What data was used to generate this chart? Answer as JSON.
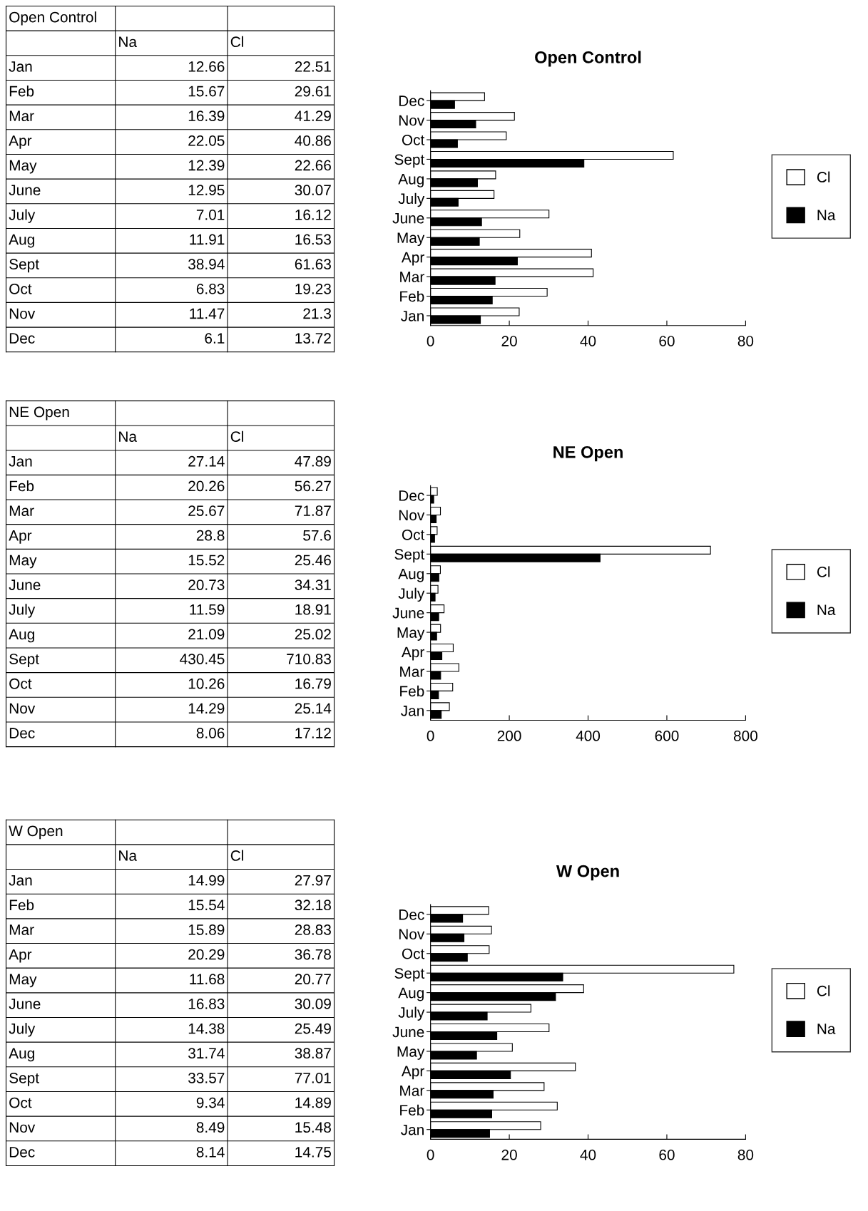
{
  "chart_data": [
    {
      "type": "other",
      "title": "Open Control",
      "annotations": [
        "Na",
        "Cl",
        "Jan",
        "12.66",
        "22.51",
        "Feb",
        "15.67",
        "29.61",
        "Mar",
        "16.39",
        "41.29",
        "Apr",
        "22.05",
        "40.86",
        "May",
        "12.39",
        "22.66",
        "June",
        "12.95",
        "30.07",
        "July",
        "7.01",
        "16.12",
        "Aug",
        "11.91",
        "16.53",
        "Sept",
        "38.94",
        "61.63",
        "Oct",
        "6.83",
        "19.23",
        "Nov",
        "11.47",
        "21.3",
        "Dec",
        "6.1",
        "13.72"
      ]
    },
    {
      "type": "bar",
      "orientation": "horizontal",
      "title": "Open Control",
      "categories": [
        "Dec",
        "Nov",
        "Oct",
        "Sept",
        "Aug",
        "July",
        "June",
        "May",
        "Apr",
        "Mar",
        "Feb",
        "Jan"
      ],
      "series": [
        {
          "name": "Cl",
          "color": "#ffffff",
          "values": [
            13.72,
            21.3,
            19.23,
            61.63,
            16.53,
            16.12,
            30.07,
            22.66,
            40.86,
            41.29,
            29.61,
            22.51
          ]
        },
        {
          "name": "Na",
          "color": "#000000",
          "values": [
            6.1,
            11.47,
            6.83,
            38.94,
            11.91,
            7.01,
            12.95,
            12.39,
            22.05,
            16.39,
            15.67,
            12.66
          ]
        }
      ],
      "xlim": [
        0,
        80
      ],
      "xticks": [
        0,
        20,
        40,
        60,
        80
      ],
      "legend": "right",
      "grid": false
    },
    {
      "type": "other",
      "title": "NE Open",
      "annotations": [
        "Na",
        "Cl",
        "Jan",
        "27.14",
        "47.89",
        "Feb",
        "20.26",
        "56.27",
        "Mar",
        "25.67",
        "71.87",
        "Apr",
        "28.8",
        "57.6",
        "May",
        "15.52",
        "25.46",
        "June",
        "20.73",
        "34.31",
        "July",
        "11.59",
        "18.91",
        "Aug",
        "21.09",
        "25.02",
        "Sept",
        "430.45",
        "710.83",
        "Oct",
        "10.26",
        "16.79",
        "Nov",
        "14.29",
        "25.14",
        "Dec",
        "8.06",
        "17.12"
      ]
    },
    {
      "type": "bar",
      "orientation": "horizontal",
      "title": "NE Open",
      "categories": [
        "Dec",
        "Nov",
        "Oct",
        "Sept",
        "Aug",
        "July",
        "June",
        "May",
        "Apr",
        "Mar",
        "Feb",
        "Jan"
      ],
      "series": [
        {
          "name": "Cl",
          "color": "#ffffff",
          "values": [
            17.12,
            25.14,
            16.79,
            710.83,
            25.02,
            18.91,
            34.31,
            25.46,
            57.6,
            71.87,
            56.27,
            47.89
          ]
        },
        {
          "name": "Na",
          "color": "#000000",
          "values": [
            8.06,
            14.29,
            10.26,
            430.45,
            21.09,
            11.59,
            20.73,
            15.52,
            28.8,
            25.67,
            20.26,
            27.14
          ]
        }
      ],
      "xlim": [
        0,
        800
      ],
      "xticks": [
        0,
        200,
        400,
        600,
        800
      ],
      "legend": "right",
      "grid": false
    },
    {
      "type": "other",
      "title": "W Open",
      "annotations": [
        "Na",
        "Cl",
        "Jan",
        "14.99",
        "27.97",
        "Feb",
        "15.54",
        "32.18",
        "Mar",
        "15.89",
        "28.83",
        "Apr",
        "20.29",
        "36.78",
        "May",
        "11.68",
        "20.77",
        "June",
        "16.83",
        "30.09",
        "July",
        "14.38",
        "25.49",
        "Aug",
        "31.74",
        "38.87",
        "Sept",
        "33.57",
        "77.01",
        "Oct",
        "9.34",
        "14.89",
        "Nov",
        "8.49",
        "15.48",
        "Dec",
        "8.14",
        "14.75"
      ]
    },
    {
      "type": "bar",
      "orientation": "horizontal",
      "title": "W Open",
      "categories": [
        "Dec",
        "Nov",
        "Oct",
        "Sept",
        "Aug",
        "July",
        "June",
        "May",
        "Apr",
        "Mar",
        "Feb",
        "Jan"
      ],
      "series": [
        {
          "name": "Cl",
          "color": "#ffffff",
          "values": [
            14.75,
            15.48,
            14.89,
            77.01,
            38.87,
            25.49,
            30.09,
            20.77,
            36.78,
            28.83,
            32.18,
            27.97
          ]
        },
        {
          "name": "Na",
          "color": "#000000",
          "values": [
            8.14,
            8.49,
            9.34,
            33.57,
            31.74,
            14.38,
            16.83,
            11.68,
            20.29,
            15.89,
            15.54,
            14.99
          ]
        }
      ],
      "xlim": [
        0,
        80
      ],
      "xticks": [
        0,
        20,
        40,
        60,
        80
      ],
      "legend": "right",
      "grid": false
    }
  ]
}
